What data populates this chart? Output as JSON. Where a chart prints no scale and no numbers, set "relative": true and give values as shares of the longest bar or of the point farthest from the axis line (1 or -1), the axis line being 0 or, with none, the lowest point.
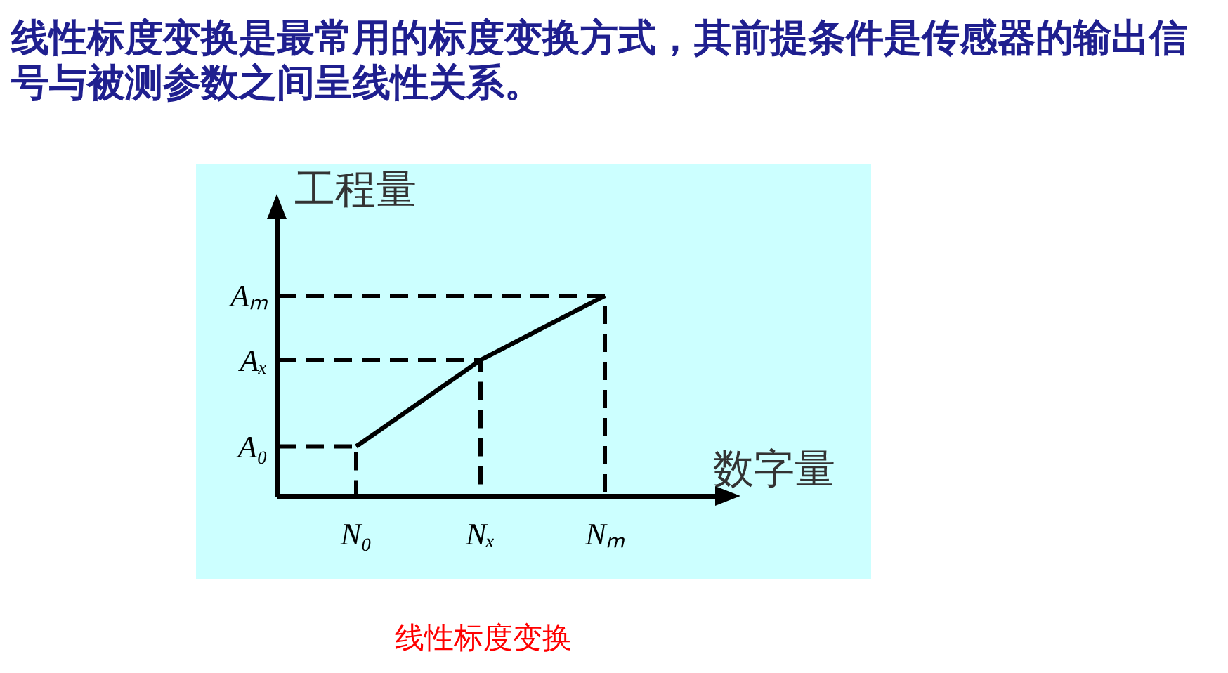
{
  "chart_data": {
    "type": "line",
    "relative": true,
    "title": "线性标度变换是最常用的标度变换方式，其前提条件是传感器的输出信号与被测参数之间呈线性关系。",
    "xlabel": "数字量",
    "ylabel": "工程量",
    "annotations": [
      "线性标度变换"
    ],
    "marker": "none",
    "categories": [
      "N₀",
      "Nₓ",
      "Nₘ"
    ],
    "series": [
      {
        "color": "#000000",
        "line_style": "solid",
        "values": [
          0.25,
          0.68,
          1
        ]
      }
    ],
    "ref_lines": [
      {
        "axis": "y",
        "value": 0.25,
        "label": "A₀",
        "line_style": "dashed",
        "color": "#000000"
      },
      {
        "axis": "y",
        "value": 0.68,
        "label": "Aₓ",
        "line_style": "dashed",
        "color": "#000000"
      },
      {
        "axis": "y",
        "value": 1,
        "label": "Aₘ",
        "line_style": "dashed",
        "color": "#000000"
      }
    ]
  }
}
